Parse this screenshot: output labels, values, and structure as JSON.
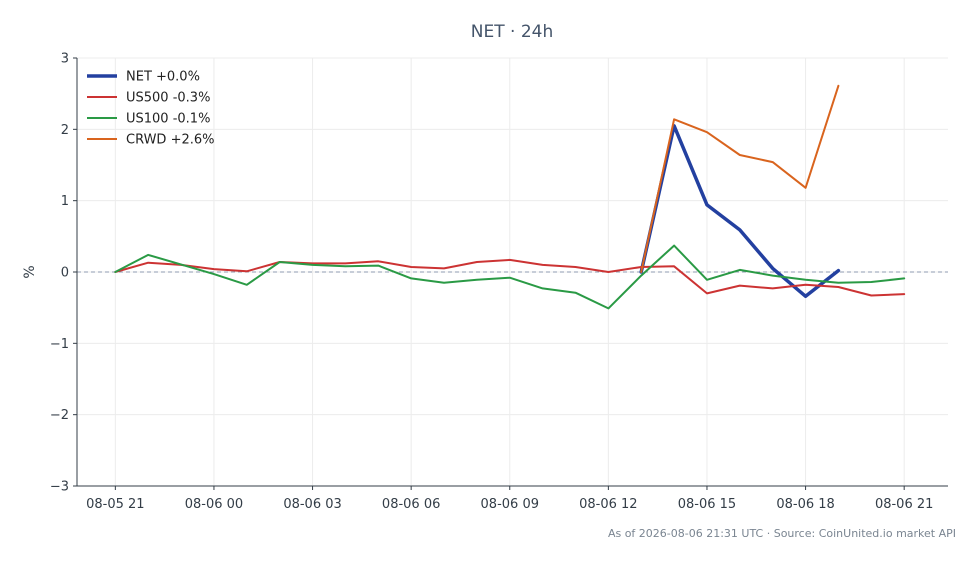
{
  "chart_data": {
    "type": "line",
    "title": "NET · 24h",
    "ylabel": "%",
    "xlabel": "",
    "ylim": [
      -3,
      3
    ],
    "yticks": [
      {
        "value": 3,
        "label": "3"
      },
      {
        "value": 2,
        "label": "2"
      },
      {
        "value": 1,
        "label": "1"
      },
      {
        "value": 0,
        "label": "0"
      },
      {
        "value": -1,
        "label": "−1"
      },
      {
        "value": -2,
        "label": "−2"
      },
      {
        "value": -3,
        "label": "−3"
      }
    ],
    "xlim": [
      "2026-08-05 19:50",
      "2026-08-06 22:20"
    ],
    "xticks": [
      {
        "value": "2026-08-05 21:00",
        "label": "08-05 21"
      },
      {
        "value": "2026-08-06 00:00",
        "label": "08-06 00"
      },
      {
        "value": "2026-08-06 03:00",
        "label": "08-06 03"
      },
      {
        "value": "2026-08-06 06:00",
        "label": "08-06 06"
      },
      {
        "value": "2026-08-06 09:00",
        "label": "08-06 09"
      },
      {
        "value": "2026-08-06 12:00",
        "label": "08-06 12"
      },
      {
        "value": "2026-08-06 15:00",
        "label": "08-06 15"
      },
      {
        "value": "2026-08-06 18:00",
        "label": "08-06 18"
      },
      {
        "value": "2026-08-06 21:00",
        "label": "08-06 21"
      }
    ],
    "grid": true,
    "baseline": 0,
    "legend_position": "top-left",
    "series": [
      {
        "name": "NET +0.0%",
        "color": "#2340a0",
        "width": 3.5,
        "points": [
          [
            "2026-08-06 13:00",
            0.0
          ],
          [
            "2026-08-06 14:00",
            2.05
          ],
          [
            "2026-08-06 15:00",
            0.94
          ],
          [
            "2026-08-06 16:00",
            0.59
          ],
          [
            "2026-08-06 17:00",
            0.05
          ],
          [
            "2026-08-06 18:00",
            -0.34
          ],
          [
            "2026-08-06 19:00",
            0.02
          ]
        ]
      },
      {
        "name": "US500 -0.3%",
        "color": "#cc3333",
        "width": 2,
        "points": [
          [
            "2026-08-05 21:00",
            0.0
          ],
          [
            "2026-08-05 22:00",
            0.13
          ],
          [
            "2026-08-05 23:00",
            0.1
          ],
          [
            "2026-08-06 00:00",
            0.04
          ],
          [
            "2026-08-06 01:00",
            0.01
          ],
          [
            "2026-08-06 02:00",
            0.14
          ],
          [
            "2026-08-06 03:00",
            0.12
          ],
          [
            "2026-08-06 04:00",
            0.12
          ],
          [
            "2026-08-06 05:00",
            0.15
          ],
          [
            "2026-08-06 06:00",
            0.07
          ],
          [
            "2026-08-06 07:00",
            0.05
          ],
          [
            "2026-08-06 08:00",
            0.14
          ],
          [
            "2026-08-06 09:00",
            0.17
          ],
          [
            "2026-08-06 10:00",
            0.1
          ],
          [
            "2026-08-06 11:00",
            0.07
          ],
          [
            "2026-08-06 12:00",
            0.0
          ],
          [
            "2026-08-06 13:00",
            0.07
          ],
          [
            "2026-08-06 14:00",
            0.08
          ],
          [
            "2026-08-06 15:00",
            -0.3
          ],
          [
            "2026-08-06 16:00",
            -0.19
          ],
          [
            "2026-08-06 17:00",
            -0.23
          ],
          [
            "2026-08-06 18:00",
            -0.18
          ],
          [
            "2026-08-06 19:00",
            -0.21
          ],
          [
            "2026-08-06 20:00",
            -0.33
          ],
          [
            "2026-08-06 21:00",
            -0.31
          ]
        ]
      },
      {
        "name": "US100 -0.1%",
        "color": "#2a9a45",
        "width": 2,
        "points": [
          [
            "2026-08-05 21:00",
            0.0
          ],
          [
            "2026-08-05 22:00",
            0.24
          ],
          [
            "2026-08-06 00:00",
            -0.03
          ],
          [
            "2026-08-06 01:00",
            -0.18
          ],
          [
            "2026-08-06 02:00",
            0.14
          ],
          [
            "2026-08-06 03:00",
            0.1
          ],
          [
            "2026-08-06 04:00",
            0.08
          ],
          [
            "2026-08-06 05:00",
            0.09
          ],
          [
            "2026-08-06 06:00",
            -0.09
          ],
          [
            "2026-08-06 07:00",
            -0.15
          ],
          [
            "2026-08-06 08:00",
            -0.11
          ],
          [
            "2026-08-06 09:00",
            -0.08
          ],
          [
            "2026-08-06 10:00",
            -0.23
          ],
          [
            "2026-08-06 11:00",
            -0.29
          ],
          [
            "2026-08-06 12:00",
            -0.51
          ],
          [
            "2026-08-06 13:00",
            -0.05
          ],
          [
            "2026-08-06 14:00",
            0.37
          ],
          [
            "2026-08-06 15:00",
            -0.11
          ],
          [
            "2026-08-06 16:00",
            0.03
          ],
          [
            "2026-08-06 17:00",
            -0.05
          ],
          [
            "2026-08-06 18:00",
            -0.11
          ],
          [
            "2026-08-06 19:00",
            -0.15
          ],
          [
            "2026-08-06 20:00",
            -0.14
          ],
          [
            "2026-08-06 21:00",
            -0.09
          ]
        ]
      },
      {
        "name": "CRWD +2.6%",
        "color": "#d9641e",
        "width": 2,
        "points": [
          [
            "2026-08-06 13:00",
            0.0
          ],
          [
            "2026-08-06 14:00",
            2.14
          ],
          [
            "2026-08-06 15:00",
            1.96
          ],
          [
            "2026-08-06 16:00",
            1.64
          ],
          [
            "2026-08-06 17:00",
            1.54
          ],
          [
            "2026-08-06 18:00",
            1.18
          ],
          [
            "2026-08-06 19:00",
            2.61
          ]
        ]
      }
    ]
  },
  "footer": {
    "source": "As of 2026-08-06 21:31 UTC · Source: CoinUnited.io market API"
  }
}
